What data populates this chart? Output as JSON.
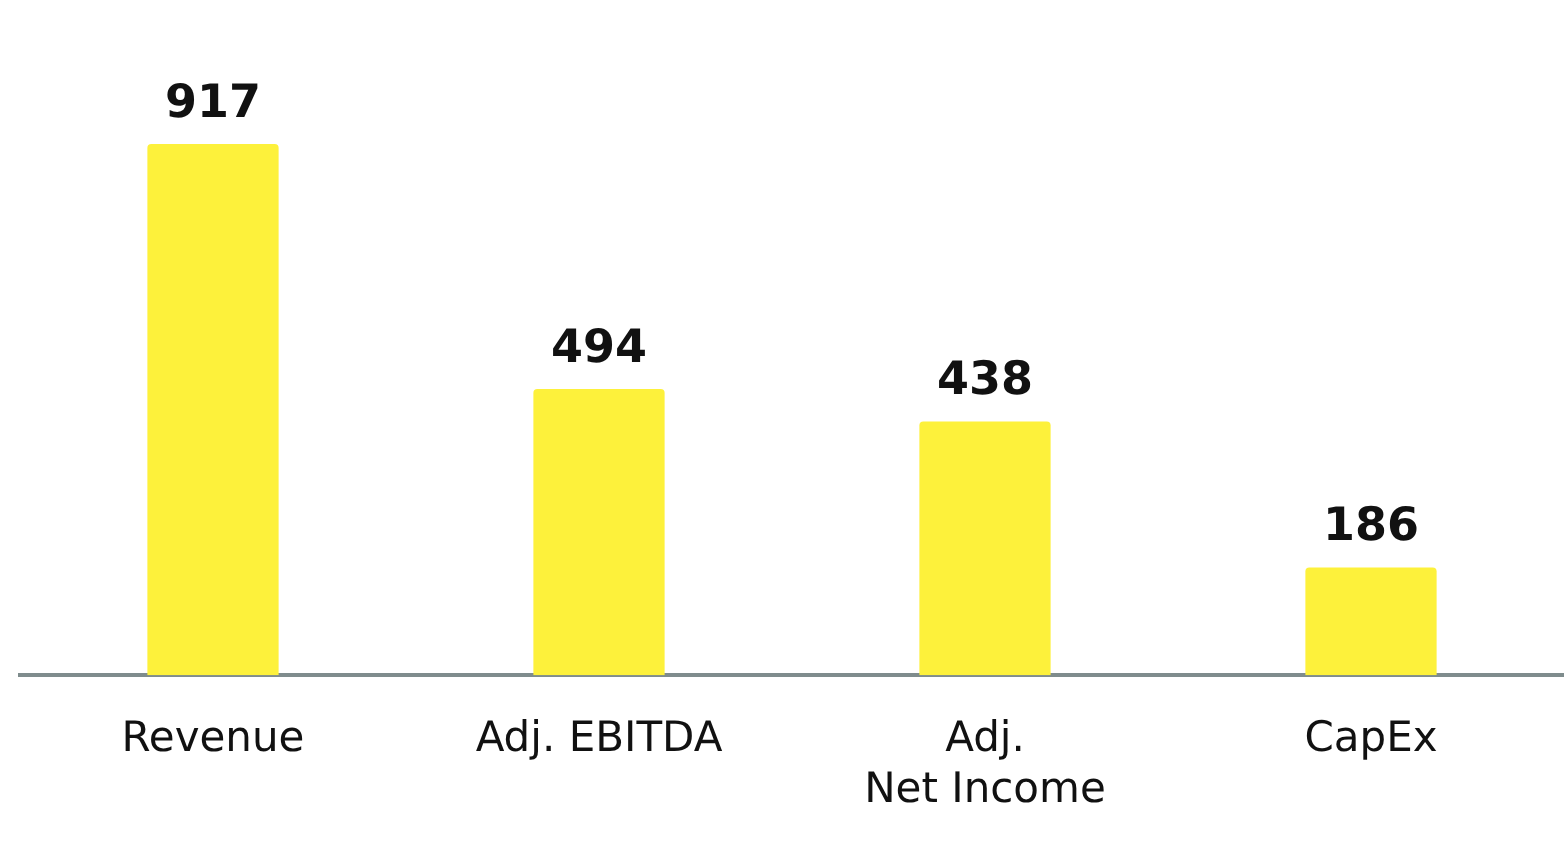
{
  "chart_data": {
    "type": "bar",
    "categories": [
      "Revenue",
      "Adj. EBITDA",
      "Adj.\nNet Income",
      "CapEx"
    ],
    "values": [
      917,
      494,
      438,
      186
    ],
    "color": "#fdf13b",
    "data_labels": true,
    "grid": false,
    "legend": false,
    "tick_labels": "x"
  }
}
